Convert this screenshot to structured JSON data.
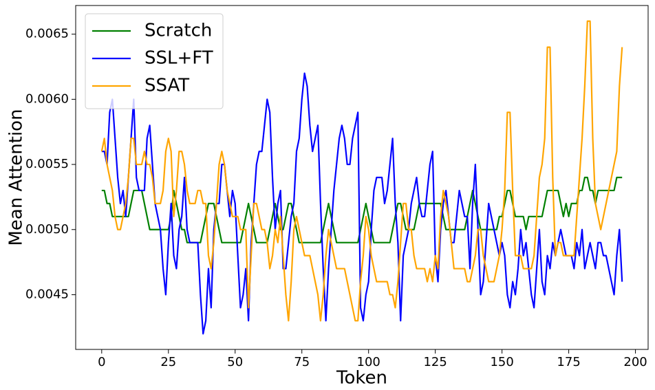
{
  "chart_data": {
    "type": "line",
    "xlabel": "Token",
    "ylabel": "Mean Attention",
    "xlim": [
      -9.75,
      204.75
    ],
    "xticks": [
      0,
      25,
      50,
      75,
      100,
      125,
      150,
      175,
      200
    ],
    "ylim": [
      0.00408,
      0.00672
    ],
    "yticks": [
      0.0045,
      {
        "value": 0.005,
        "label": "0.0050"
      },
      0.0055,
      {
        "value": 0.006,
        "label": "0.0060"
      },
      0.0065
    ],
    "legend": "upper left",
    "x": [
      0,
      1,
      2,
      3,
      4,
      5,
      6,
      7,
      8,
      9,
      10,
      11,
      12,
      13,
      14,
      15,
      16,
      17,
      18,
      19,
      20,
      21,
      22,
      23,
      24,
      25,
      26,
      27,
      28,
      29,
      30,
      31,
      32,
      33,
      34,
      35,
      36,
      37,
      38,
      39,
      40,
      41,
      42,
      43,
      44,
      45,
      46,
      47,
      48,
      49,
      50,
      51,
      52,
      53,
      54,
      55,
      56,
      57,
      58,
      59,
      60,
      61,
      62,
      63,
      64,
      65,
      66,
      67,
      68,
      69,
      70,
      71,
      72,
      73,
      74,
      75,
      76,
      77,
      78,
      79,
      80,
      81,
      82,
      83,
      84,
      85,
      86,
      87,
      88,
      89,
      90,
      91,
      92,
      93,
      94,
      95,
      96,
      97,
      98,
      99,
      100,
      101,
      102,
      103,
      104,
      105,
      106,
      107,
      108,
      109,
      110,
      111,
      112,
      113,
      114,
      115,
      116,
      117,
      118,
      119,
      120,
      121,
      122,
      123,
      124,
      125,
      126,
      127,
      128,
      129,
      130,
      131,
      132,
      133,
      134,
      135,
      136,
      137,
      138,
      139,
      140,
      141,
      142,
      143,
      144,
      145,
      146,
      147,
      148,
      149,
      150,
      151,
      152,
      153,
      154,
      155,
      156,
      157,
      158,
      159,
      160,
      161,
      162,
      163,
      164,
      165,
      166,
      167,
      168,
      169,
      170,
      171,
      172,
      173,
      174,
      175,
      176,
      177,
      178,
      179,
      180,
      181,
      182,
      183,
      184,
      185,
      186,
      187,
      188,
      189,
      190,
      191,
      192,
      193,
      194,
      195
    ],
    "series": [
      {
        "name": "Scratch",
        "color": "#008000",
        "values": [
          0.0053,
          0.0053,
          0.0052,
          0.0052,
          0.0051,
          0.0051,
          0.0051,
          0.0051,
          0.0051,
          0.0051,
          0.0051,
          0.0052,
          0.0053,
          0.0053,
          0.0053,
          0.0053,
          0.0052,
          0.0051,
          0.005,
          0.005,
          0.005,
          0.005,
          0.005,
          0.005,
          0.005,
          0.005,
          0.0051,
          0.0053,
          0.0052,
          0.0051,
          0.005,
          0.005,
          0.0049,
          0.0049,
          0.0049,
          0.0049,
          0.0049,
          0.0049,
          0.005,
          0.0051,
          0.0052,
          0.0052,
          0.0052,
          0.0051,
          0.005,
          0.0049,
          0.0049,
          0.0049,
          0.0049,
          0.0049,
          0.0049,
          0.0049,
          0.0049,
          0.005,
          0.0051,
          0.0052,
          0.0051,
          0.005,
          0.0049,
          0.0049,
          0.0049,
          0.0049,
          0.0049,
          0.005,
          0.0051,
          0.0052,
          0.0051,
          0.005,
          0.005,
          0.0051,
          0.0052,
          0.0052,
          0.0051,
          0.005,
          0.0049,
          0.0049,
          0.0049,
          0.0049,
          0.0049,
          0.0049,
          0.0049,
          0.0049,
          0.0049,
          0.005,
          0.0051,
          0.0052,
          0.0051,
          0.005,
          0.0049,
          0.0049,
          0.0049,
          0.0049,
          0.0049,
          0.0049,
          0.0049,
          0.0049,
          0.0049,
          0.005,
          0.0051,
          0.0052,
          0.0051,
          0.005,
          0.0049,
          0.0049,
          0.0049,
          0.0049,
          0.0049,
          0.0049,
          0.0049,
          0.005,
          0.0051,
          0.0052,
          0.0052,
          0.0051,
          0.005,
          0.005,
          0.005,
          0.005,
          0.0051,
          0.0052,
          0.0052,
          0.0052,
          0.0052,
          0.0052,
          0.0052,
          0.0052,
          0.0052,
          0.0052,
          0.0051,
          0.005,
          0.005,
          0.005,
          0.005,
          0.005,
          0.005,
          0.005,
          0.005,
          0.0051,
          0.0052,
          0.0053,
          0.0052,
          0.0051,
          0.005,
          0.005,
          0.005,
          0.005,
          0.005,
          0.005,
          0.005,
          0.0051,
          0.0051,
          0.0052,
          0.0053,
          0.0053,
          0.0052,
          0.0051,
          0.0051,
          0.0051,
          0.0051,
          0.005,
          0.0051,
          0.0051,
          0.0051,
          0.0051,
          0.0051,
          0.0051,
          0.0052,
          0.0053,
          0.0053,
          0.0053,
          0.0053,
          0.0053,
          0.0052,
          0.0051,
          0.0052,
          0.0051,
          0.0052,
          0.0052,
          0.0052,
          0.0053,
          0.0053,
          0.0054,
          0.0054,
          0.0053,
          0.0053,
          0.0052,
          0.0053,
          0.0053,
          0.0053,
          0.0053,
          0.0053,
          0.0053,
          0.0053,
          0.0054,
          0.0054,
          0.0054
        ]
      },
      {
        "name": "SSL+FT",
        "color": "#0000ff",
        "values": [
          0.0056,
          0.0056,
          0.0055,
          0.0059,
          0.006,
          0.0057,
          0.0054,
          0.0052,
          0.0053,
          0.0051,
          0.0054,
          0.0057,
          0.006,
          0.0054,
          0.0053,
          0.0053,
          0.0053,
          0.0057,
          0.0058,
          0.0055,
          0.0052,
          0.0051,
          0.005,
          0.0047,
          0.0045,
          0.0049,
          0.0052,
          0.0048,
          0.0047,
          0.005,
          0.0051,
          0.0054,
          0.005,
          0.0049,
          0.0049,
          0.0049,
          0.0049,
          0.0045,
          0.0042,
          0.0043,
          0.0047,
          0.0044,
          0.005,
          0.0052,
          0.0052,
          0.0055,
          0.0055,
          0.0053,
          0.0051,
          0.0053,
          0.0052,
          0.0048,
          0.0044,
          0.0045,
          0.0047,
          0.0043,
          0.0049,
          0.0052,
          0.0055,
          0.0056,
          0.0056,
          0.0058,
          0.006,
          0.0059,
          0.0054,
          0.005,
          0.0052,
          0.0053,
          0.0047,
          0.0047,
          0.0049,
          0.0051,
          0.0052,
          0.0056,
          0.0057,
          0.006,
          0.0062,
          0.0061,
          0.0058,
          0.0056,
          0.0057,
          0.0058,
          0.0052,
          0.0047,
          0.0043,
          0.0047,
          0.005,
          0.0053,
          0.0055,
          0.0057,
          0.0058,
          0.0057,
          0.0055,
          0.0055,
          0.0057,
          0.0058,
          0.0059,
          0.0044,
          0.0043,
          0.0045,
          0.0046,
          0.005,
          0.0053,
          0.0054,
          0.0054,
          0.0054,
          0.0052,
          0.0053,
          0.0055,
          0.0057,
          0.0052,
          0.0049,
          0.0043,
          0.0048,
          0.0049,
          0.005,
          0.0052,
          0.0053,
          0.0054,
          0.0052,
          0.0051,
          0.0051,
          0.0053,
          0.0055,
          0.0056,
          0.0048,
          0.0046,
          0.005,
          0.0052,
          0.0053,
          0.0051,
          0.0049,
          0.0049,
          0.0051,
          0.0053,
          0.0052,
          0.0051,
          0.0051,
          0.0047,
          0.0052,
          0.0055,
          0.005,
          0.0045,
          0.0046,
          0.0049,
          0.0052,
          0.0051,
          0.005,
          0.0049,
          0.0048,
          0.0049,
          0.0048,
          0.0045,
          0.0044,
          0.0046,
          0.0045,
          0.0047,
          0.005,
          0.0048,
          0.0049,
          0.0047,
          0.0045,
          0.0044,
          0.0047,
          0.005,
          0.0046,
          0.0045,
          0.0048,
          0.0047,
          0.0049,
          0.0048,
          0.0049,
          0.005,
          0.0049,
          0.0048,
          0.0048,
          0.0048,
          0.0047,
          0.0049,
          0.0048,
          0.005,
          0.0047,
          0.0048,
          0.0049,
          0.0048,
          0.0047,
          0.0049,
          0.0049,
          0.0048,
          0.0048,
          0.0047,
          0.0046,
          0.0045,
          0.0048,
          0.005,
          0.0046
        ]
      },
      {
        "name": "SSAT",
        "color": "#ffa500",
        "values": [
          0.0056,
          0.0057,
          0.0055,
          0.0054,
          0.0053,
          0.0051,
          0.005,
          0.005,
          0.0051,
          0.0052,
          0.0054,
          0.0057,
          0.0057,
          0.0055,
          0.0055,
          0.0055,
          0.0056,
          0.0055,
          0.0055,
          0.0054,
          0.0052,
          0.0052,
          0.0052,
          0.0053,
          0.0056,
          0.0057,
          0.0056,
          0.0051,
          0.0053,
          0.0056,
          0.0056,
          0.0055,
          0.0053,
          0.0052,
          0.0052,
          0.0052,
          0.0053,
          0.0053,
          0.0052,
          0.0052,
          0.0048,
          0.0047,
          0.0049,
          0.0052,
          0.0055,
          0.0056,
          0.0055,
          0.0053,
          0.0052,
          0.0051,
          0.0051,
          0.0051,
          0.005,
          0.005,
          0.005,
          0.0044,
          0.0048,
          0.0052,
          0.0052,
          0.0051,
          0.005,
          0.005,
          0.0049,
          0.0047,
          0.0048,
          0.005,
          0.0049,
          0.0051,
          0.0048,
          0.0045,
          0.0043,
          0.0046,
          0.005,
          0.0051,
          0.005,
          0.0049,
          0.0048,
          0.0048,
          0.0048,
          0.0047,
          0.0046,
          0.0045,
          0.0043,
          0.0045,
          0.0048,
          0.005,
          0.0049,
          0.0048,
          0.0047,
          0.0047,
          0.0047,
          0.0047,
          0.0046,
          0.0045,
          0.0044,
          0.0043,
          0.0043,
          0.0046,
          0.0048,
          0.0051,
          0.005,
          0.0048,
          0.0047,
          0.0046,
          0.0046,
          0.0046,
          0.0046,
          0.0046,
          0.0045,
          0.0045,
          0.0044,
          0.0046,
          0.0049,
          0.0052,
          0.0052,
          0.005,
          0.005,
          0.0048,
          0.0047,
          0.0047,
          0.0047,
          0.0047,
          0.0046,
          0.0047,
          0.0046,
          0.0048,
          0.0047,
          0.0051,
          0.0053,
          0.0052,
          0.0051,
          0.0049,
          0.0047,
          0.0047,
          0.0047,
          0.0047,
          0.0047,
          0.0046,
          0.0046,
          0.0047,
          0.0048,
          0.005,
          0.005,
          0.0048,
          0.0047,
          0.0046,
          0.0046,
          0.0046,
          0.0047,
          0.0048,
          0.005,
          0.0053,
          0.0059,
          0.0059,
          0.0053,
          0.0048,
          0.0048,
          0.0048,
          0.0047,
          0.0047,
          0.0047,
          0.0047,
          0.0048,
          0.0051,
          0.0054,
          0.0055,
          0.0057,
          0.0064,
          0.0064,
          0.0054,
          0.0048,
          0.0049,
          0.0049,
          0.0048,
          0.0048,
          0.0048,
          0.0048,
          0.0048,
          0.0051,
          0.0054,
          0.0057,
          0.0061,
          0.0066,
          0.0066,
          0.0057,
          0.0052,
          0.0051,
          0.005,
          0.0051,
          0.0052,
          0.0053,
          0.0054,
          0.0055,
          0.0056,
          0.0061,
          0.0064
        ]
      }
    ]
  }
}
